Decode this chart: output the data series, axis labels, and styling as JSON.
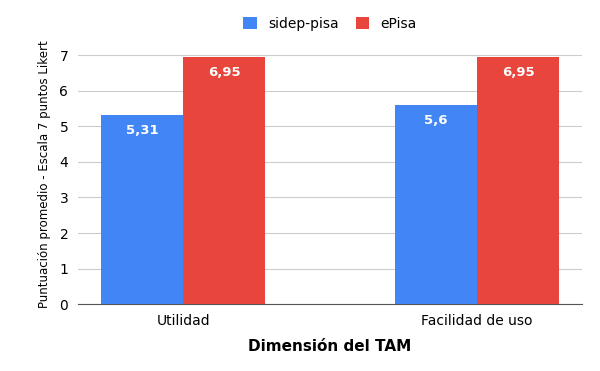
{
  "categories": [
    "Utilidad",
    "Facilidad de uso"
  ],
  "series": [
    {
      "label": "sidep-pisa",
      "values": [
        5.31,
        5.6
      ],
      "color": "#4285F4"
    },
    {
      "label": "ePisa",
      "values": [
        6.95,
        6.95
      ],
      "color": "#E8453C"
    }
  ],
  "xlabel": "Dimensión del TAM",
  "ylabel": "Puntuación promedio - Escala 7 puntos Likert",
  "ylim": [
    0,
    7.3
  ],
  "yticks": [
    0,
    1,
    2,
    3,
    4,
    5,
    6,
    7
  ],
  "bar_width": 0.28,
  "background_color": "#ffffff",
  "grid_color": "#cccccc",
  "label_color": "#ffffff",
  "label_fontsize": 9.5,
  "xlabel_fontsize": 11,
  "ylabel_fontsize": 8.5,
  "legend_fontsize": 10,
  "tick_fontsize": 10
}
